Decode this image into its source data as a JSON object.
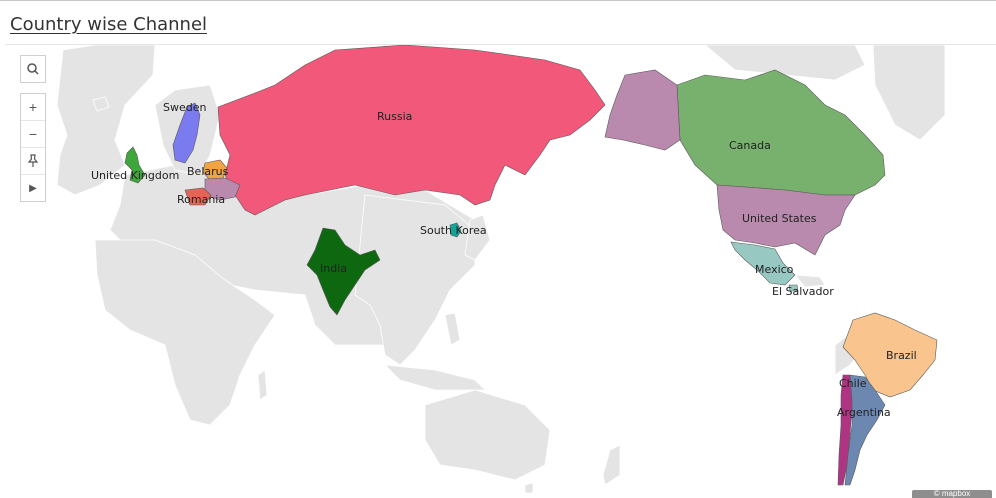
{
  "title": "Country wise Channel",
  "controls": {
    "search": "search-icon",
    "zoom_in": "+",
    "zoom_out": "−",
    "pin": "pin-icon",
    "expand": "▶"
  },
  "countries": [
    {
      "name": "Russia",
      "color": "#f2587a"
    },
    {
      "name": "Sweden",
      "color": "#7b7bf0"
    },
    {
      "name": "United Kingdom",
      "color": "#3ea63a"
    },
    {
      "name": "Belarus",
      "color": "#f2a443"
    },
    {
      "name": "Romania",
      "color": "#e36555"
    },
    {
      "name": "India",
      "color": "#0d6810"
    },
    {
      "name": "South Korea",
      "color": "#13a39a"
    },
    {
      "name": "Canada",
      "color": "#78b06d"
    },
    {
      "name": "United States",
      "color": "#b98aad"
    },
    {
      "name": "Mexico",
      "color": "#98c8c2"
    },
    {
      "name": "El Salvador",
      "color": "#98c8c2"
    },
    {
      "name": "Brazil",
      "color": "#f9c48e"
    },
    {
      "name": "Chile",
      "color": "#b03484"
    },
    {
      "name": "Argentina",
      "color": "#6c88b1"
    }
  ],
  "attribution": "© mapbox"
}
